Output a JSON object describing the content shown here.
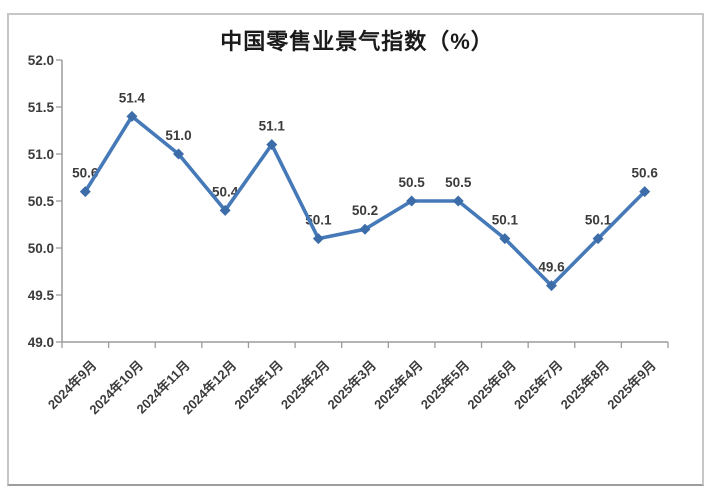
{
  "chart_data": {
    "type": "line",
    "title": "中国零售业景气指数（%）",
    "categories": [
      "2024年9月",
      "2024年10月",
      "2024年11月",
      "2024年12月",
      "2025年1月",
      "2025年2月",
      "2025年3月",
      "2025年4月",
      "2025年5月",
      "2025年6月",
      "2025年7月",
      "2025年8月",
      "2025年9月"
    ],
    "values": [
      50.6,
      51.4,
      51.0,
      50.4,
      51.1,
      50.1,
      50.2,
      50.5,
      50.5,
      50.1,
      49.6,
      50.1,
      50.6
    ],
    "data_labels": [
      "50.6",
      "51.4",
      "51.0",
      "50.4",
      "51.1",
      "50.1",
      "50.2",
      "50.5",
      "50.5",
      "50.1",
      "49.6",
      "50.1",
      "50.6"
    ],
    "xlabel": "",
    "ylabel": "",
    "ylim": [
      49.0,
      52.0
    ],
    "ytick_step": 0.5,
    "ytick_labels": [
      "49.0",
      "49.5",
      "50.0",
      "50.5",
      "51.0",
      "51.5",
      "52.0"
    ],
    "grid": "off",
    "legend": "none",
    "marker": "diamond",
    "x_label_rotation_deg": -45
  },
  "colors": {
    "line": "#4579b8",
    "marker_fill": "#3c6da8",
    "data_label_text": "#3b3b3b",
    "axis_line": "#9b9b9b",
    "tick_label_text": "#3b3b3b",
    "title_text": "#1a1a1a",
    "frame_border": "#c6c6c6",
    "background": "#ffffff"
  }
}
